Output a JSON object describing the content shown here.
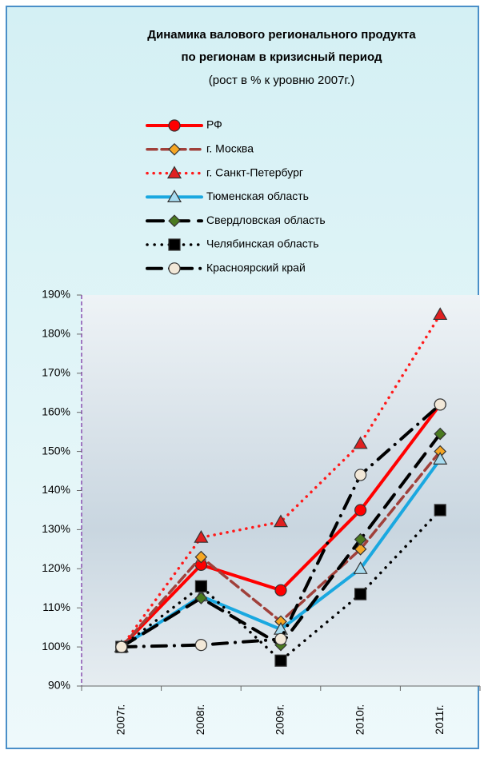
{
  "chart_data": {
    "type": "line",
    "title": [
      "Динамика валового регионального продукта",
      "по регионам  в кризисный период"
    ],
    "subtitle": "(рост  в % к уровню 2007г.)",
    "categories": [
      "2007г.",
      "2008г.",
      "2009г.",
      "2010г.",
      "2011г."
    ],
    "ylim": [
      90,
      190
    ],
    "yticks": [
      {
        "value": 90,
        "label": "90%"
      },
      {
        "value": 100,
        "label": "100%"
      },
      {
        "value": 110,
        "label": "110%"
      },
      {
        "value": 120,
        "label": "120%"
      },
      {
        "value": 130,
        "label": "130%"
      },
      {
        "value": 140,
        "label": "140%"
      },
      {
        "value": 150,
        "label": "150%"
      },
      {
        "value": 160,
        "label": "160%"
      },
      {
        "value": 170,
        "label": "170%"
      },
      {
        "value": 180,
        "label": "180%"
      },
      {
        "value": 190,
        "label": "190%"
      }
    ],
    "series": [
      {
        "name": "РФ",
        "color": "#ff0000",
        "marker": "circle",
        "marker_color": "#ff0000",
        "line": "solid",
        "values": [
          100,
          121,
          114.5,
          135,
          162
        ]
      },
      {
        "name": "г. Москва",
        "color": "#a0403a",
        "marker": "diamond",
        "marker_color": "#f5a623",
        "line": "dashed",
        "values": [
          100,
          123,
          106.5,
          125,
          150
        ]
      },
      {
        "name": "г. Санкт-Петербург",
        "color": "#ff1a1a",
        "marker": "triangle",
        "marker_color": "#e02020",
        "line": "dotted",
        "values": [
          100,
          128,
          132,
          152,
          185
        ]
      },
      {
        "name": "Тюменская область",
        "color": "#1aa8e0",
        "marker": "triangle",
        "marker_color": "#a8dcf0",
        "line": "solid",
        "values": [
          100,
          113,
          104.5,
          120,
          148
        ]
      },
      {
        "name": "Свердловская область",
        "color": "#000000",
        "marker": "diamond",
        "marker_color": "#4a7a20",
        "line": "longdash",
        "values": [
          100,
          112.5,
          100.5,
          127.5,
          154.5
        ]
      },
      {
        "name": "Челябинская область",
        "color": "#000000",
        "marker": "square",
        "marker_color": "#000000",
        "line": "dot",
        "values": [
          100,
          115.5,
          96.5,
          113.5,
          135
        ]
      },
      {
        "name": "Красноярский край",
        "color": "#000000",
        "marker": "circle",
        "marker_color": "#f2e8d8",
        "line": "dashdot",
        "values": [
          100,
          100.5,
          102,
          144,
          162
        ]
      }
    ]
  }
}
